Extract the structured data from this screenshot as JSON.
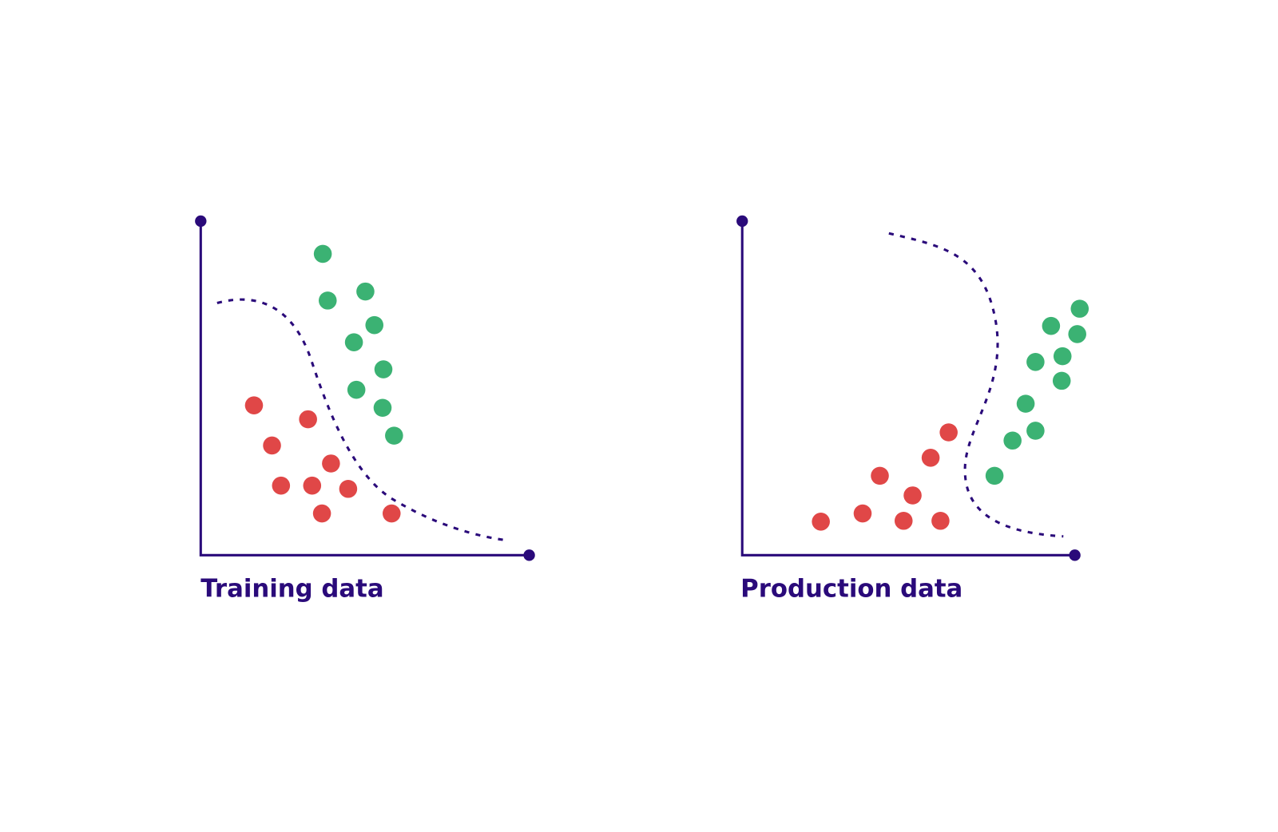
{
  "panels": [
    {
      "title": "Training data"
    },
    {
      "title": "Production data"
    }
  ]
}
